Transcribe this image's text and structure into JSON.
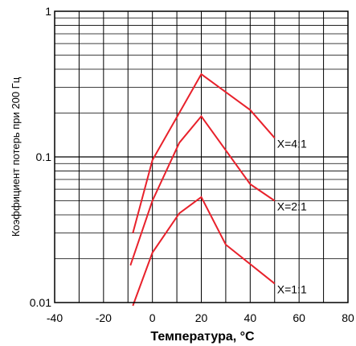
{
  "chart_data": {
    "type": "line",
    "xlabel": "Температура, °C",
    "ylabel": "Коэффициент потерь при 200 Гц",
    "xlim": [
      -40,
      80
    ],
    "ylim": [
      0.01,
      1
    ],
    "y_scale": "log",
    "grid": true,
    "x_ticks": [
      "-40",
      "-20",
      "0",
      "20",
      "40",
      "60",
      "80"
    ],
    "y_ticks": [
      "0.01",
      "0.1",
      "1"
    ],
    "series": [
      {
        "name": "X=4:1",
        "color": "#e8212b",
        "points": [
          [
            -8,
            0.03
          ],
          [
            0,
            0.095
          ],
          [
            20,
            0.37
          ],
          [
            40,
            0.21
          ],
          [
            50,
            0.135
          ]
        ]
      },
      {
        "name": "X=2:1",
        "color": "#e8212b",
        "points": [
          [
            -9,
            0.018
          ],
          [
            0,
            0.05
          ],
          [
            11,
            0.125
          ],
          [
            20,
            0.19
          ],
          [
            40,
            0.065
          ],
          [
            50,
            0.05
          ]
        ]
      },
      {
        "name": "X=1:1",
        "color": "#e8212b",
        "points": [
          [
            -8,
            0.0095
          ],
          [
            0,
            0.022
          ],
          [
            11,
            0.041
          ],
          [
            20,
            0.053
          ],
          [
            30,
            0.025
          ],
          [
            50,
            0.0135
          ]
        ]
      }
    ]
  }
}
